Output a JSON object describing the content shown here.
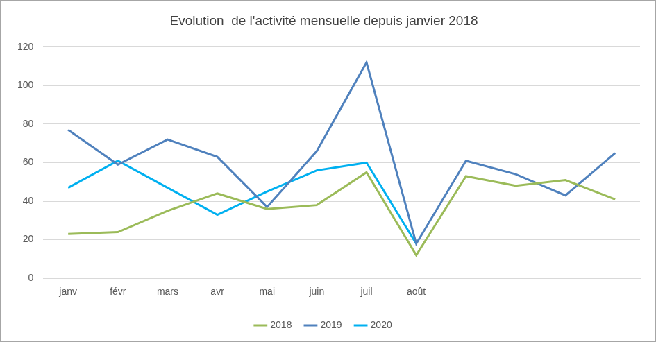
{
  "chart_data": {
    "type": "line",
    "title": "Evolution  de l'activité mensuelle depuis janvier 2018",
    "categories": [
      "janv",
      "févr",
      "mars",
      "avr",
      "mai",
      "juin",
      "juil",
      "août",
      null,
      null,
      null,
      null
    ],
    "series": [
      {
        "name": "2018",
        "color": "#9bbb59",
        "values": [
          23,
          24,
          35,
          44,
          36,
          38,
          55,
          12,
          53,
          48,
          51,
          41
        ]
      },
      {
        "name": "2019",
        "color": "#4f81bd",
        "values": [
          77,
          59,
          72,
          63,
          37,
          66,
          112,
          18,
          61,
          54,
          43,
          65
        ]
      },
      {
        "name": "2020",
        "color": "#00b0f0",
        "values": [
          47,
          61,
          47,
          33,
          45,
          56,
          60,
          18,
          null,
          null,
          null,
          null
        ]
      }
    ],
    "ylim": [
      0,
      120
    ],
    "yticks": [
      0,
      20,
      40,
      60,
      80,
      100,
      120
    ],
    "grid": true,
    "legend": "bottom"
  }
}
